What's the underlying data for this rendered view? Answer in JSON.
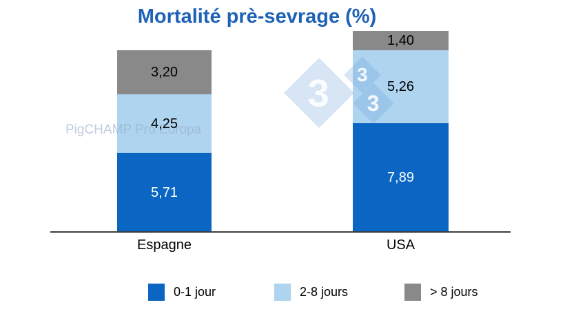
{
  "title": "Mortalité prè-sevrage (%)",
  "title_color": "#1e62b5",
  "watermark": {
    "text": "PigCHAMP Pro Europa",
    "logo_digits": [
      "3",
      "3",
      "3"
    ]
  },
  "chart_data": {
    "type": "bar",
    "stacked": true,
    "title": "Mortalité prè-sevrage (%)",
    "categories": [
      "Espagne",
      "USA"
    ],
    "series": [
      {
        "name": "0-1 jour",
        "color": "#0a66c2",
        "values": [
          5.71,
          7.89
        ],
        "display": [
          "5,71",
          "7,89"
        ],
        "label_color": "#ffffff"
      },
      {
        "name": "2-8 jours",
        "color": "#aed4f0",
        "values": [
          4.25,
          5.26
        ],
        "display": [
          "4,25",
          "5,26"
        ],
        "label_color": "#000000"
      },
      {
        "name": "> 8 jours",
        "color": "#898989",
        "values": [
          3.2,
          1.4
        ],
        "display": [
          "3,20",
          "1,40"
        ],
        "label_color": "#000000"
      }
    ],
    "xlabel": "",
    "ylabel": "",
    "ylim": [
      0,
      14.55
    ],
    "grid": false,
    "legend_position": "bottom",
    "axis_line_color": "#3c3c3c"
  }
}
